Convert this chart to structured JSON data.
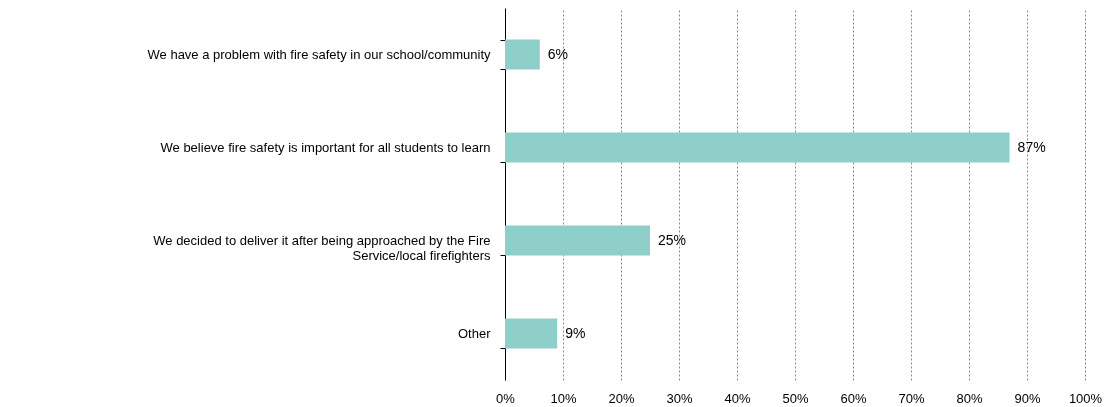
{
  "chart_data": {
    "type": "bar",
    "orientation": "horizontal",
    "categories": [
      "We have a problem with fire safety in our school/community",
      "We believe fire safety is important for all students to learn",
      "We decided to deliver it after being approached by the Fire Service/local firefighters",
      "Other"
    ],
    "values": [
      6,
      87,
      25,
      9
    ],
    "value_labels": [
      "6%",
      "87%",
      "25%",
      "9%"
    ],
    "color": "#8ecfc9",
    "xlim": [
      0,
      100
    ],
    "xticks": [
      {
        "value": 0,
        "label": "0%"
      },
      {
        "value": 10,
        "label": "10%"
      },
      {
        "value": 20,
        "label": "20%"
      },
      {
        "value": 30,
        "label": "30%"
      },
      {
        "value": 40,
        "label": "40%"
      },
      {
        "value": 50,
        "label": "50%"
      },
      {
        "value": 60,
        "label": "60%"
      },
      {
        "value": 70,
        "label": "70%"
      },
      {
        "value": 80,
        "label": "80%"
      },
      {
        "value": 90,
        "label": "90%"
      },
      {
        "value": 100,
        "label": "100%"
      }
    ],
    "grid": "x"
  }
}
